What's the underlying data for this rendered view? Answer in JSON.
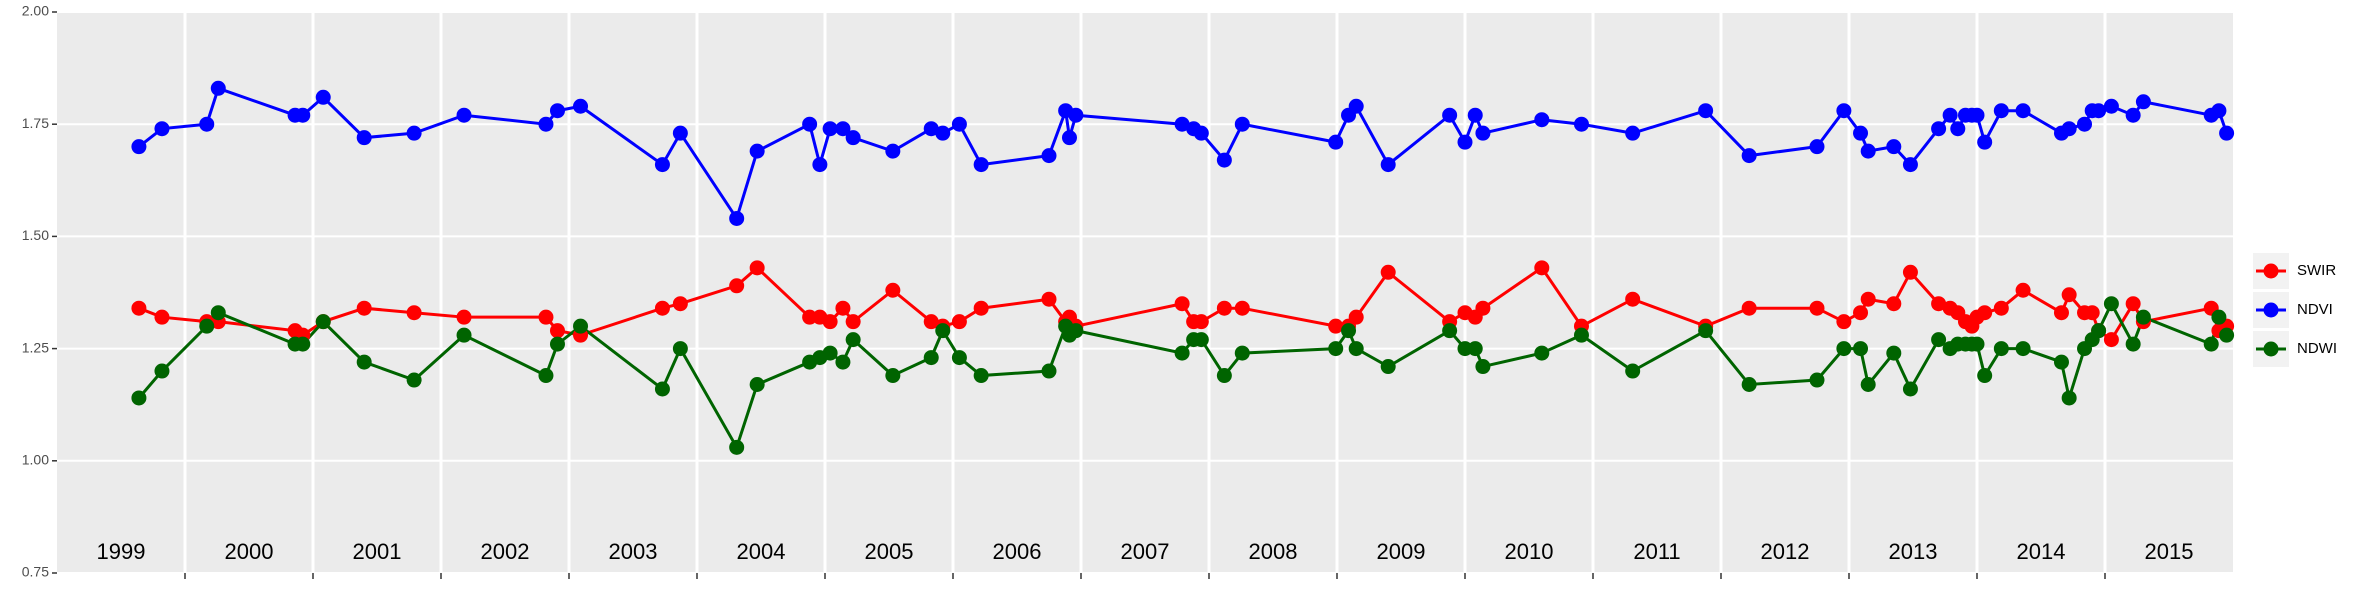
{
  "chart_data": {
    "type": "line",
    "x": [
      1999.64,
      1999.82,
      2000.17,
      2000.26,
      2000.86,
      2000.92,
      2001.08,
      2001.4,
      2001.79,
      2002.18,
      2002.82,
      2002.91,
      2003.09,
      2003.73,
      2003.87,
      2004.31,
      2004.47,
      2004.88,
      2004.96,
      2005.04,
      2005.14,
      2005.22,
      2005.53,
      2005.83,
      2005.92,
      2006.05,
      2006.22,
      2006.75,
      2006.88,
      2006.91,
      2006.96,
      2007.79,
      2007.88,
      2007.94,
      2008.12,
      2008.26,
      2008.99,
      2009.09,
      2009.15,
      2009.4,
      2009.88,
      2010.0,
      2010.08,
      2010.14,
      2010.6,
      2010.91,
      2011.31,
      2011.88,
      2012.22,
      2012.75,
      2012.96,
      2013.09,
      2013.15,
      2013.35,
      2013.48,
      2013.7,
      2013.79,
      2013.85,
      2013.91,
      2013.96,
      2014.0,
      2014.06,
      2014.19,
      2014.36,
      2014.66,
      2014.72,
      2014.84,
      2014.9,
      2014.95,
      2015.05,
      2015.22,
      2015.3,
      2015.83,
      2015.89,
      2015.95
    ],
    "series": [
      {
        "name": "SWIR",
        "color": "#ff0000",
        "values": [
          1.34,
          1.32,
          1.31,
          1.31,
          1.29,
          1.28,
          1.31,
          1.34,
          1.33,
          1.32,
          1.32,
          1.29,
          1.28,
          1.34,
          1.35,
          1.39,
          1.43,
          1.32,
          1.32,
          1.31,
          1.34,
          1.31,
          1.38,
          1.31,
          1.3,
          1.31,
          1.34,
          1.36,
          1.31,
          1.32,
          1.3,
          1.35,
          1.31,
          1.31,
          1.34,
          1.34,
          1.3,
          1.3,
          1.32,
          1.42,
          1.31,
          1.33,
          1.32,
          1.34,
          1.43,
          1.3,
          1.36,
          1.3,
          1.34,
          1.34,
          1.31,
          1.33,
          1.36,
          1.35,
          1.42,
          1.35,
          1.34,
          1.33,
          1.31,
          1.3,
          1.32,
          1.33,
          1.34,
          1.38,
          1.33,
          1.37,
          1.33,
          1.33,
          1.29,
          1.27,
          1.35,
          1.31,
          1.34,
          1.29,
          1.3
        ]
      },
      {
        "name": "NDVI",
        "color": "#0000ff",
        "values": [
          1.7,
          1.74,
          1.75,
          1.83,
          1.77,
          1.77,
          1.81,
          1.72,
          1.73,
          1.77,
          1.75,
          1.78,
          1.79,
          1.66,
          1.73,
          1.54,
          1.69,
          1.75,
          1.66,
          1.74,
          1.74,
          1.72,
          1.69,
          1.74,
          1.73,
          1.75,
          1.66,
          1.68,
          1.78,
          1.72,
          1.77,
          1.75,
          1.74,
          1.73,
          1.67,
          1.75,
          1.71,
          1.77,
          1.79,
          1.66,
          1.77,
          1.71,
          1.77,
          1.73,
          1.76,
          1.75,
          1.73,
          1.78,
          1.68,
          1.7,
          1.78,
          1.73,
          1.69,
          1.7,
          1.66,
          1.74,
          1.77,
          1.74,
          1.77,
          1.77,
          1.77,
          1.71,
          1.78,
          1.78,
          1.73,
          1.74,
          1.75,
          1.78,
          1.78,
          1.79,
          1.77,
          1.8,
          1.77,
          1.78,
          1.73
        ]
      },
      {
        "name": "NDWI",
        "color": "#006400",
        "values": [
          1.14,
          1.2,
          1.3,
          1.33,
          1.26,
          1.26,
          1.31,
          1.22,
          1.18,
          1.28,
          1.19,
          1.26,
          1.3,
          1.16,
          1.25,
          1.03,
          1.17,
          1.22,
          1.23,
          1.24,
          1.22,
          1.27,
          1.19,
          1.23,
          1.29,
          1.23,
          1.19,
          1.2,
          1.3,
          1.28,
          1.29,
          1.24,
          1.27,
          1.27,
          1.19,
          1.24,
          1.25,
          1.29,
          1.25,
          1.21,
          1.29,
          1.25,
          1.25,
          1.21,
          1.24,
          1.28,
          1.2,
          1.29,
          1.17,
          1.18,
          1.25,
          1.25,
          1.17,
          1.24,
          1.16,
          1.27,
          1.25,
          1.26,
          1.26,
          1.26,
          1.26,
          1.19,
          1.25,
          1.25,
          1.22,
          1.14,
          1.25,
          1.27,
          1.29,
          1.35,
          1.26,
          1.32,
          1.26,
          1.32,
          1.28
        ]
      }
    ],
    "year_labels": [
      "1999",
      "2000",
      "2001",
      "2002",
      "2003",
      "2004",
      "2005",
      "2006",
      "2007",
      "2008",
      "2009",
      "2010",
      "2011",
      "2012",
      "2013",
      "2014",
      "2015"
    ],
    "xlim": [
      1999,
      2016
    ],
    "xticks": [
      2000,
      2001,
      2002,
      2003,
      2004,
      2005,
      2006,
      2007,
      2008,
      2009,
      2010,
      2011,
      2012,
      2013,
      2014,
      2015
    ],
    "ylim": [
      0.75,
      2.0
    ],
    "yticks": [
      {
        "value": 0.75,
        "label": "0.75"
      },
      {
        "value": 1,
        "label": "1.00"
      },
      {
        "value": 1.25,
        "label": "1.25"
      },
      {
        "value": 1.5,
        "label": "1.50"
      },
      {
        "value": 1.75,
        "label": "1.75"
      },
      {
        "value": 2,
        "label": "2.00"
      }
    ],
    "grid": true,
    "legend": "right"
  }
}
